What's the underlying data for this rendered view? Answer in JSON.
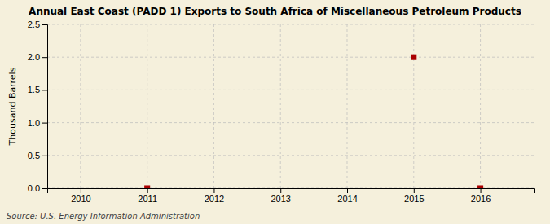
{
  "chart_data": {
    "type": "scatter",
    "title": "Annual East Coast (PADD 1) Exports to South Africa of Miscellaneous Petroleum Products",
    "ylabel": "Thousand Barrels",
    "source": "Source: U.S. Energy Information Administration",
    "x": [
      2011,
      2015,
      2016
    ],
    "values": [
      0.0,
      2.0,
      0.0
    ],
    "color": "#aa0000",
    "marker": "square",
    "xlim": [
      2009.5,
      2016.8
    ],
    "ylim": [
      0,
      2.5
    ],
    "xticks": [
      2010,
      2011,
      2012,
      2013,
      2014,
      2015,
      2016
    ],
    "yticks": [
      {
        "value": 0.0,
        "label": "0.0"
      },
      0.5,
      {
        "value": 1.0,
        "label": "1.0"
      },
      1.5,
      {
        "value": 2.0,
        "label": "2.0"
      },
      2.5
    ],
    "grid": true
  }
}
